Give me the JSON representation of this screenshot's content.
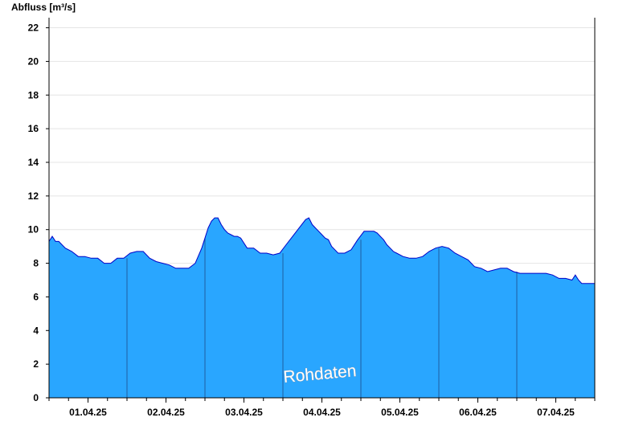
{
  "colors": {
    "area_fill": "#29a6ff",
    "line": "#0000c8",
    "day_separator": "#1f5fa0",
    "grid": "#e4e4e4",
    "axis": "#000000"
  },
  "watermark": "Rohdaten",
  "chart_data": {
    "type": "area",
    "ylabel": "Abfluss [m³/s]",
    "ylim": [
      0,
      22.6
    ],
    "yticks": [
      0,
      2,
      4,
      6,
      8,
      10,
      12,
      14,
      16,
      18,
      20,
      22
    ],
    "ytick_labels": [
      "0",
      "2",
      "4",
      "6",
      "8",
      "10",
      "12",
      "14",
      "16",
      "18",
      "20",
      "22"
    ],
    "xlim": [
      "2025-03-31T12:00",
      "2025-04-07T12:00"
    ],
    "xtick_labels": [
      {
        "x": "2025-04-01T00:00",
        "label": "01.04.25"
      },
      {
        "x": "2025-04-02T00:00",
        "label": "02.04.25"
      },
      {
        "x": "2025-04-03T00:00",
        "label": "03.04.25"
      },
      {
        "x": "2025-04-04T00:00",
        "label": "04.04.25"
      },
      {
        "x": "2025-04-05T00:00",
        "label": "05.04.25"
      },
      {
        "x": "2025-04-06T00:00",
        "label": "06.04.25"
      },
      {
        "x": "2025-04-07T00:00",
        "label": "07.04.25"
      }
    ],
    "grid": true,
    "series": [
      {
        "x": [
          "2025-03-31T12:00",
          "2025-03-31T13:00",
          "2025-03-31T14:00",
          "2025-03-31T15:00",
          "2025-03-31T17:00",
          "2025-03-31T19:00",
          "2025-03-31T21:00",
          "2025-03-31T23:00",
          "2025-04-01T01:00",
          "2025-04-01T03:00",
          "2025-04-01T05:00",
          "2025-04-01T07:00",
          "2025-04-01T09:00",
          "2025-04-01T11:00",
          "2025-04-01T13:00",
          "2025-04-01T15:00",
          "2025-04-01T17:00",
          "2025-04-01T19:00",
          "2025-04-01T21:00",
          "2025-04-01T23:00",
          "2025-04-02T01:00",
          "2025-04-02T03:00",
          "2025-04-02T05:00",
          "2025-04-02T07:00",
          "2025-04-02T09:00",
          "2025-04-02T11:00",
          "2025-04-02T12:00",
          "2025-04-02T13:00",
          "2025-04-02T14:00",
          "2025-04-02T15:00",
          "2025-04-02T16:00",
          "2025-04-02T17:00",
          "2025-04-02T18:00",
          "2025-04-02T19:00",
          "2025-04-02T20:00",
          "2025-04-02T21:00",
          "2025-04-02T22:00",
          "2025-04-02T23:00",
          "2025-04-03T01:00",
          "2025-04-03T03:00",
          "2025-04-03T05:00",
          "2025-04-03T07:00",
          "2025-04-03T09:00",
          "2025-04-03T11:00",
          "2025-04-03T13:00",
          "2025-04-03T15:00",
          "2025-04-03T17:00",
          "2025-04-03T19:00",
          "2025-04-03T20:00",
          "2025-04-03T21:00",
          "2025-04-03T22:00",
          "2025-04-03T23:00",
          "2025-04-04T00:00",
          "2025-04-04T01:00",
          "2025-04-04T02:00",
          "2025-04-04T03:00",
          "2025-04-04T04:00",
          "2025-04-04T05:00",
          "2025-04-04T07:00",
          "2025-04-04T09:00",
          "2025-04-04T11:00",
          "2025-04-04T13:00",
          "2025-04-04T15:00",
          "2025-04-04T16:00",
          "2025-04-04T17:00",
          "2025-04-04T18:00",
          "2025-04-04T19:00",
          "2025-04-04T20:00",
          "2025-04-04T21:00",
          "2025-04-04T22:00",
          "2025-04-04T23:00",
          "2025-04-05T01:00",
          "2025-04-05T03:00",
          "2025-04-05T05:00",
          "2025-04-05T07:00",
          "2025-04-05T09:00",
          "2025-04-05T11:00",
          "2025-04-05T13:00",
          "2025-04-05T15:00",
          "2025-04-05T17:00",
          "2025-04-05T19:00",
          "2025-04-05T21:00",
          "2025-04-05T22:00",
          "2025-04-05T23:00",
          "2025-04-06T01:00",
          "2025-04-06T03:00",
          "2025-04-06T05:00",
          "2025-04-06T07:00",
          "2025-04-06T09:00",
          "2025-04-06T11:00",
          "2025-04-06T13:00",
          "2025-04-06T15:00",
          "2025-04-06T17:00",
          "2025-04-06T19:00",
          "2025-04-06T21:00",
          "2025-04-06T23:00",
          "2025-04-07T01:00",
          "2025-04-07T03:00",
          "2025-04-07T05:00",
          "2025-04-07T06:00",
          "2025-04-07T07:00",
          "2025-04-07T08:00",
          "2025-04-07T09:00",
          "2025-04-07T10:00",
          "2025-04-07T12:00"
        ],
        "y": [
          9.3,
          9.6,
          9.3,
          9.3,
          8.9,
          8.7,
          8.4,
          8.4,
          8.3,
          8.3,
          8.0,
          8.0,
          8.3,
          8.3,
          8.6,
          8.7,
          8.7,
          8.3,
          8.1,
          8.0,
          7.9,
          7.7,
          7.7,
          7.7,
          8.0,
          8.9,
          9.5,
          10.1,
          10.5,
          10.7,
          10.7,
          10.3,
          10.0,
          9.8,
          9.7,
          9.6,
          9.6,
          9.5,
          8.9,
          8.9,
          8.6,
          8.6,
          8.5,
          8.6,
          9.1,
          9.6,
          10.1,
          10.6,
          10.7,
          10.3,
          10.1,
          9.9,
          9.7,
          9.5,
          9.4,
          9.0,
          8.8,
          8.6,
          8.6,
          8.8,
          9.4,
          9.9,
          9.9,
          9.9,
          9.8,
          9.6,
          9.4,
          9.1,
          8.9,
          8.7,
          8.6,
          8.4,
          8.3,
          8.3,
          8.4,
          8.7,
          8.9,
          9.0,
          8.9,
          8.6,
          8.4,
          8.2,
          8.0,
          7.8,
          7.7,
          7.5,
          7.6,
          7.7,
          7.7,
          7.5,
          7.4,
          7.4,
          7.4,
          7.4,
          7.4,
          7.3,
          7.1,
          7.1,
          7.0,
          7.3,
          7.0,
          6.8,
          6.8,
          6.8,
          6.8
        ]
      }
    ]
  }
}
